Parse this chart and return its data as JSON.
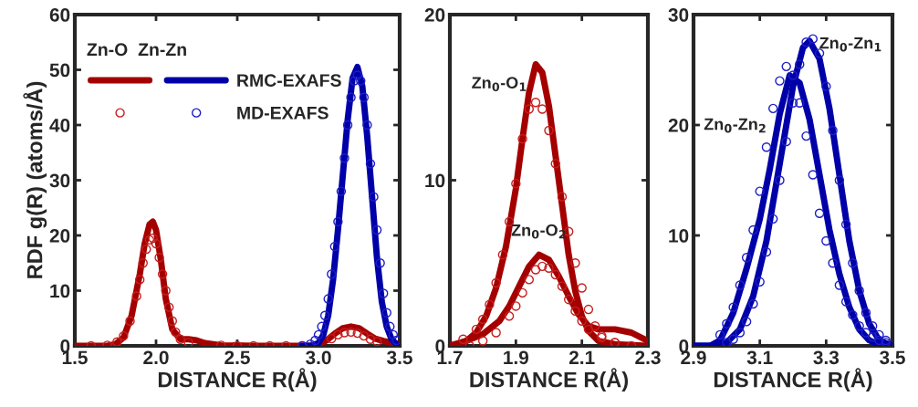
{
  "chart_data": [
    {
      "type": "line",
      "xlabel": "DISTANCE R(Å)",
      "ylabel": "RDF g(R) (atoms/Å)",
      "xlim": [
        1.5,
        3.5
      ],
      "ylim": [
        0,
        60
      ],
      "xticks": [
        1.5,
        {
          "value": 2,
          "label": "2.0"
        },
        2.5,
        {
          "value": 3,
          "label": "3.0"
        },
        3.5
      ],
      "yticks": [
        0,
        10,
        20,
        30,
        40,
        50,
        60
      ],
      "grid": false,
      "legend": "top left",
      "annotations": [
        "Zn-O",
        "Zn-Zn"
      ],
      "series": [
        {
          "color": "#a50000",
          "x": [
            1.5,
            1.7,
            1.75,
            1.8,
            1.85,
            1.9,
            1.93,
            1.96,
            1.98,
            2.0,
            2.03,
            2.06,
            2.1,
            2.15,
            2.2,
            2.25,
            2.3,
            2.4,
            2.6,
            2.8,
            2.95,
            3.0,
            3.05,
            3.1,
            3.15,
            3.2,
            3.25,
            3.3,
            3.35,
            3.4,
            3.5
          ],
          "values": [
            0,
            0,
            0.3,
            1.5,
            5.5,
            13,
            18.5,
            22,
            22.5,
            21,
            15.5,
            8.5,
            3,
            1.2,
            1.2,
            1,
            0.5,
            0.1,
            0,
            0,
            0,
            0.2,
            1,
            2.2,
            3.2,
            3.5,
            3.2,
            2.2,
            1.3,
            0.9,
            0.3
          ]
        },
        {
          "name": "RMC-EXAFS",
          "color": "#0000a8",
          "x": [
            2.9,
            2.95,
            3.0,
            3.03,
            3.06,
            3.09,
            3.12,
            3.15,
            3.18,
            3.21,
            3.24,
            3.27,
            3.3,
            3.33,
            3.36,
            3.39,
            3.42,
            3.45,
            3.48,
            3.5
          ],
          "values": [
            0,
            0,
            0.5,
            2,
            5.5,
            12,
            21,
            31,
            41,
            48.5,
            50.5,
            47,
            38,
            27,
            16,
            8,
            3.5,
            1.2,
            0.3,
            0
          ]
        },
        {
          "type": "scatter",
          "marker": "circle",
          "color": "#c81e1e",
          "x": [
            1.6,
            1.7,
            1.76,
            1.8,
            1.84,
            1.88,
            1.9,
            1.92,
            1.94,
            1.96,
            1.98,
            2.0,
            2.02,
            2.04,
            2.06,
            2.08,
            2.1,
            2.12,
            2.15,
            2.2,
            2.4,
            2.5,
            2.6,
            2.7,
            2.8,
            2.9,
            3.08,
            3.12,
            3.16,
            3.2,
            3.24,
            3.28,
            3.32,
            3.36
          ],
          "values": [
            0,
            0.1,
            0.7,
            1.8,
            4.5,
            9,
            12,
            15,
            17.5,
            19.2,
            19.5,
            18.5,
            16,
            13,
            10,
            7,
            4.5,
            2.5,
            1.2,
            0.6,
            0.1,
            0,
            0,
            0,
            0,
            0,
            1.3,
            2,
            2.4,
            2.5,
            2.3,
            1.8,
            1.2,
            0.8
          ]
        },
        {
          "name": "MD-EXAFS",
          "type": "scatter",
          "marker": "circle",
          "color": "#1e1ec8",
          "x": [
            2.9,
            2.95,
            2.98,
            3.0,
            3.02,
            3.04,
            3.06,
            3.08,
            3.1,
            3.12,
            3.14,
            3.16,
            3.18,
            3.2,
            3.22,
            3.24,
            3.26,
            3.28,
            3.3,
            3.32,
            3.34,
            3.36,
            3.38,
            3.4,
            3.42,
            3.44,
            3.46,
            3.48
          ],
          "values": [
            0,
            0.3,
            1,
            2,
            3.5,
            5.5,
            8.5,
            13,
            18,
            22.5,
            28,
            34,
            40,
            45,
            48,
            49,
            48,
            45,
            40,
            33,
            27,
            21,
            15,
            9.5,
            6,
            3.5,
            2,
            1
          ]
        }
      ]
    },
    {
      "type": "line",
      "xlabel": "DISTANCE R(Å)",
      "xlim": [
        1.7,
        2.3
      ],
      "ylim": [
        0,
        20
      ],
      "xticks": [
        1.7,
        1.9,
        2.1,
        2.3
      ],
      "yticks": [
        0,
        10,
        20
      ],
      "grid": false,
      "annotations": [
        "Zn$_{0}$-O$_{1}$",
        "Zn$_{0}$-O$_{2}$"
      ],
      "series": [
        {
          "color": "#a50000",
          "x": [
            1.7,
            1.72,
            1.75,
            1.78,
            1.81,
            1.84,
            1.87,
            1.9,
            1.92,
            1.94,
            1.96,
            1.98,
            2.0,
            2.02,
            2.04,
            2.06,
            2.08,
            2.1,
            2.12,
            2.15,
            2.2,
            2.3
          ],
          "values": [
            0,
            0.1,
            0.3,
            0.8,
            1.8,
            3.5,
            6,
            9.5,
            12.5,
            15.3,
            17,
            16.5,
            14.5,
            11.5,
            8.5,
            5.5,
            3.3,
            1.8,
            0.9,
            0.3,
            0.1,
            0
          ]
        },
        {
          "color": "#a50000",
          "x": [
            1.7,
            1.75,
            1.8,
            1.85,
            1.88,
            1.91,
            1.94,
            1.97,
            2.0,
            2.03,
            2.06,
            2.09,
            2.12,
            2.15,
            2.2,
            2.25,
            2.3
          ],
          "values": [
            0,
            0.3,
            0.7,
            1.5,
            2.4,
            3.6,
            4.8,
            5.5,
            5.2,
            4.2,
            3,
            1.9,
            1.2,
            1,
            1,
            0.8,
            0.3
          ]
        },
        {
          "type": "scatter",
          "marker": "circle",
          "color": "#c81e1e",
          "x": [
            1.74,
            1.78,
            1.8,
            1.82,
            1.84,
            1.86,
            1.88,
            1.9,
            1.92,
            1.94,
            1.96,
            1.98,
            2.0,
            2.02,
            2.04,
            2.06,
            2.08,
            2.1,
            2.12,
            2.14,
            2.16,
            2.2,
            2.25
          ],
          "values": [
            0.4,
            1,
            1.6,
            2.5,
            3.8,
            5.5,
            7.5,
            9.8,
            12.5,
            14.3,
            14.7,
            14.3,
            13,
            11,
            9,
            6.9,
            5,
            3.5,
            2.2,
            1.2,
            0.6,
            0.2,
            0
          ]
        },
        {
          "type": "scatter",
          "marker": "circle",
          "color": "#c81e1e",
          "x": [
            1.76,
            1.8,
            1.84,
            1.88,
            1.9,
            1.92,
            1.94,
            1.96,
            1.98,
            2.0,
            2.02,
            2.04,
            2.06,
            2.08,
            2.1,
            2.12,
            2.16,
            2.2
          ],
          "values": [
            0,
            0.3,
            0.8,
            1.8,
            2.4,
            3.2,
            4,
            4.6,
            4.8,
            4.7,
            4.3,
            3.6,
            2.8,
            2.1,
            1.5,
            1,
            0.5,
            0.2
          ]
        }
      ]
    },
    {
      "type": "line",
      "xlabel": "DISTANCE R(Å)",
      "xlim": [
        2.9,
        3.5
      ],
      "ylim": [
        0,
        30
      ],
      "xticks": [
        2.9,
        3.1,
        3.3,
        3.5
      ],
      "yticks": [
        0,
        10,
        20,
        30
      ],
      "grid": false,
      "annotations": [
        "Zn$_{0}$-Zn$_{1}$",
        "Zn$_{0}$-Zn$_{2}$"
      ],
      "series": [
        {
          "color": "#0000a8",
          "x": [
            2.9,
            2.96,
            3.0,
            3.04,
            3.08,
            3.12,
            3.16,
            3.2,
            3.23,
            3.25,
            3.28,
            3.31,
            3.34,
            3.37,
            3.4,
            3.43,
            3.46,
            3.5
          ],
          "values": [
            0,
            0,
            0.3,
            1.5,
            4.5,
            9.5,
            16.5,
            23.5,
            27,
            27.6,
            26,
            21.5,
            15.5,
            9.5,
            5,
            2,
            0.5,
            0
          ]
        },
        {
          "color": "#0000a8",
          "x": [
            2.9,
            2.95,
            2.98,
            3.02,
            3.06,
            3.1,
            3.13,
            3.16,
            3.19,
            3.22,
            3.25,
            3.28,
            3.31,
            3.34,
            3.37,
            3.4,
            3.43,
            3.46,
            3.5
          ],
          "values": [
            0,
            0,
            0.5,
            3,
            7,
            11.5,
            16,
            21,
            24.5,
            23.8,
            20.5,
            15.5,
            10.5,
            6.5,
            3.5,
            1.5,
            0.5,
            0.1,
            0
          ]
        },
        {
          "type": "scatter",
          "marker": "circle",
          "color": "#1e1ec8",
          "x": [
            2.98,
            3.0,
            3.02,
            3.04,
            3.06,
            3.08,
            3.1,
            3.12,
            3.14,
            3.16,
            3.18,
            3.2,
            3.22,
            3.24,
            3.26,
            3.28,
            3.3,
            3.32,
            3.34,
            3.36,
            3.38,
            3.4,
            3.42,
            3.44,
            3.46,
            3.48
          ],
          "values": [
            1,
            2,
            3.5,
            5.5,
            8,
            10.5,
            14,
            18,
            21.5,
            24,
            25.3,
            24.5,
            22,
            19,
            15.5,
            12,
            9.5,
            7.5,
            5.5,
            4,
            2.8,
            1.8,
            1.2,
            0.8,
            0.5,
            0.3
          ]
        },
        {
          "type": "scatter",
          "marker": "circle",
          "color": "#1e1ec8",
          "x": [
            3.0,
            3.02,
            3.04,
            3.06,
            3.08,
            3.1,
            3.12,
            3.14,
            3.16,
            3.18,
            3.2,
            3.22,
            3.24,
            3.26,
            3.28,
            3.3,
            3.32,
            3.34,
            3.36,
            3.38,
            3.4,
            3.42,
            3.44,
            3.46,
            3.48
          ],
          "values": [
            0.3,
            0.6,
            1.2,
            2.2,
            3.8,
            5.8,
            8.5,
            11.5,
            15,
            18.5,
            22,
            25.5,
            27.5,
            27.8,
            26.5,
            23.5,
            19.5,
            15,
            11,
            7.5,
            5,
            3,
            1.8,
            1,
            0.5
          ]
        }
      ]
    }
  ]
}
